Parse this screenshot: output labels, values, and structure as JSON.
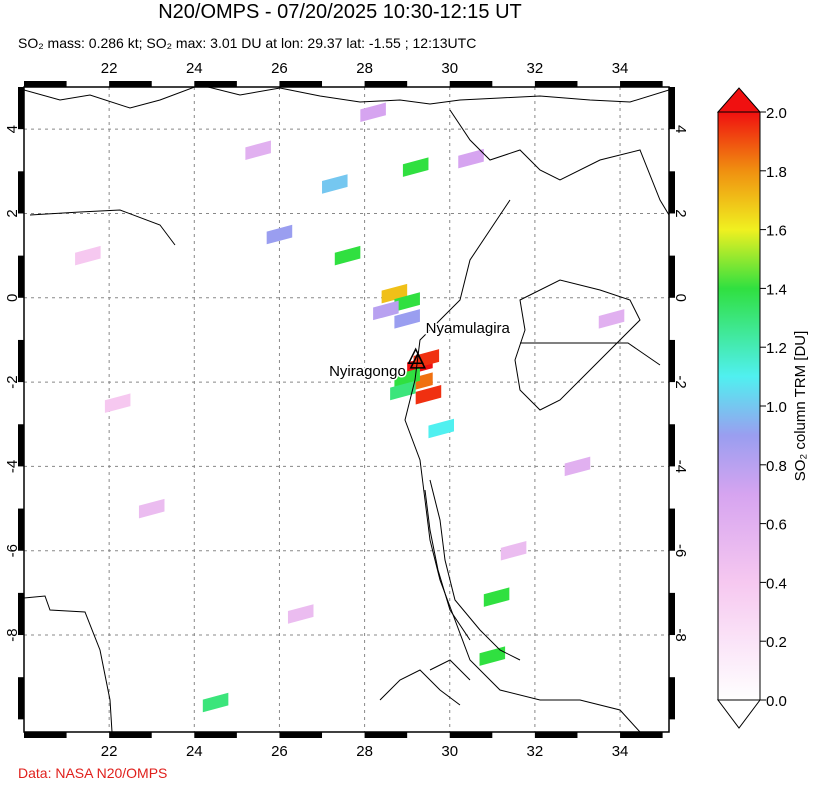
{
  "chart_data": {
    "type": "map",
    "title": "N20/OMPS - 07/20/2025 10:30-12:15 UT",
    "subtitle": "SO₂ mass: 0.286 kt; SO₂ max: 3.01 DU at lon: 29.37 lat: -1.55 ; 12:13UTC",
    "footer": "Data: NASA N20/OMPS",
    "colorbar_label": "SO₂ column TRM [DU]",
    "xlim": [
      20,
      35.15
    ],
    "ylim": [
      -10.3,
      5
    ],
    "xticks": [
      22,
      24,
      26,
      28,
      30,
      32,
      34
    ],
    "yticks": [
      4,
      2,
      0,
      -2,
      -4,
      -6,
      -8
    ],
    "clim": [
      0,
      2
    ],
    "cticks": [
      {
        "value": 0,
        "label": "0.0"
      },
      {
        "value": 0.2,
        "label": "0.2"
      },
      {
        "value": 0.4,
        "label": "0.4"
      },
      {
        "value": 0.6,
        "label": "0.6"
      },
      {
        "value": 0.8,
        "label": "0.8"
      },
      {
        "value": 1.0,
        "label": "1.0"
      },
      {
        "value": 1.2,
        "label": "1.2"
      },
      {
        "value": 1.4,
        "label": "1.4"
      },
      {
        "value": 1.6,
        "label": "1.6"
      },
      {
        "value": 1.8,
        "label": "1.8"
      },
      {
        "value": 2.0,
        "label": "2.0"
      }
    ],
    "volcanoes": [
      {
        "name": "Nyamulagira",
        "lon": 29.2,
        "lat": -1.41
      },
      {
        "name": "Nyiragongo",
        "lon": 29.25,
        "lat": -1.52
      }
    ],
    "pixels": {
      "lon": [
        28.7,
        29.0,
        29.3,
        29.45,
        29.3,
        29.5,
        29.0,
        28.9,
        29.0,
        27.6,
        29.2,
        28.5,
        31.1,
        31.0,
        26.0,
        27.3,
        29.8,
        25.5,
        23.0,
        21.5,
        33.0,
        31.5,
        24.5,
        30.5,
        26.5,
        22.2,
        33.8,
        28.2
      ],
      "lat": [
        0.1,
        -0.1,
        -1.6,
        -1.45,
        -2.0,
        -2.3,
        -1.9,
        -2.2,
        -0.5,
        1.0,
        3.1,
        -0.3,
        -7.1,
        -8.5,
        1.5,
        2.7,
        -3.1,
        3.5,
        -5.0,
        1.0,
        -4.0,
        -6.0,
        -9.6,
        3.3,
        -7.5,
        -2.5,
        -0.5,
        4.4
      ],
      "values": [
        1.7,
        1.4,
        2.0,
        1.95,
        1.85,
        1.95,
        1.4,
        1.3,
        0.9,
        1.4,
        1.4,
        0.8,
        1.4,
        1.4,
        0.9,
        1.0,
        1.1,
        0.6,
        0.5,
        0.4,
        0.6,
        0.5,
        1.3,
        0.7,
        0.5,
        0.4,
        0.6,
        0.7
      ]
    }
  }
}
